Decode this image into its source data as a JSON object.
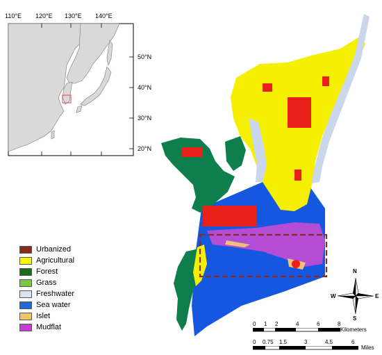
{
  "inset": {
    "lon_labels": [
      "110°E",
      "120°E",
      "130°E",
      "140°E"
    ],
    "lat_labels": [
      "50°N",
      "40°N",
      "30°N",
      "20°N"
    ]
  },
  "legend": [
    {
      "label": "Urbanized",
      "color": "#8B2B1F"
    },
    {
      "label": "Agricultural",
      "color": "#F7F700"
    },
    {
      "label": "Forest",
      "color": "#1E6B1E"
    },
    {
      "label": "Grass",
      "color": "#7BC642"
    },
    {
      "label": "Freshwater",
      "color": "#D9E4F2"
    },
    {
      "label": "Sea water",
      "color": "#1B6BD8"
    },
    {
      "label": "Islet",
      "color": "#F2C46A"
    },
    {
      "label": "Mudflat",
      "color": "#C33DD6"
    }
  ],
  "map_colors": {
    "urbanized_fill": "#E8201A",
    "agricultural": "#F4F000",
    "forest": "#0E7F4C",
    "freshwater": "#C9D6EC",
    "sea": "#1657E0",
    "mudflat": "#B44CD6",
    "islet": "#EFC27A"
  },
  "compass": {
    "n": "N",
    "s": "S",
    "e": "E",
    "w": "W"
  },
  "scale_km": {
    "ticks": [
      "0",
      "1",
      "2",
      "4",
      "6",
      "8"
    ],
    "unit": "Kilometers"
  },
  "scale_mi": {
    "ticks": [
      "0",
      "0.75",
      "1.5",
      "3",
      "4.5",
      "6"
    ],
    "unit": "Miles"
  }
}
